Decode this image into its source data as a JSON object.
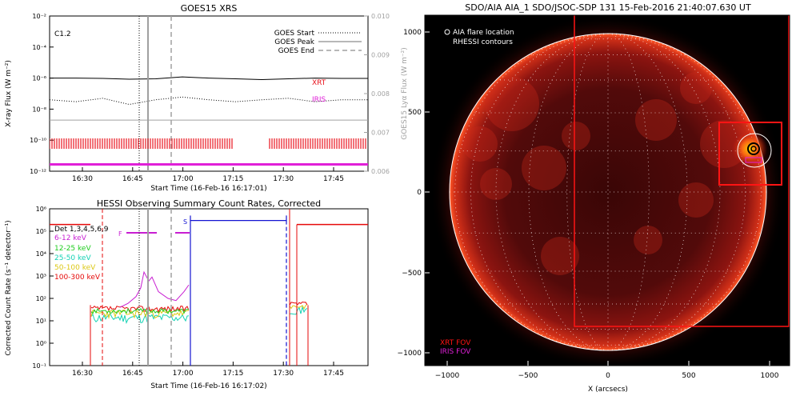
{
  "colors": {
    "xrt": "#e8141e",
    "iris": "#e020d8",
    "hessi_6_12": "#c81ed2",
    "hessi_12_25": "#1ecc1e",
    "hessi_25_50": "#14d2b4",
    "hessi_50_100": "#dcc814",
    "hessi_100_300": "#e60a0a",
    "hessi_s_box": "#1414d2",
    "goes_flux_long": "#000000",
    "goes_flux_short": "#000000",
    "goes_lya": "#a0a0a0"
  },
  "chart_data": [
    {
      "type": "line",
      "title": "GOES15 XRS",
      "xlabel": "Start Time (16-Feb-16 16:17:01)",
      "ylabel": "X-ray Flux (W m⁻²)",
      "y2label": "GOES15 Lyα Flux (W m⁻²)",
      "xticks": [
        "16:30",
        "16:45",
        "17:00",
        "17:15",
        "17:30",
        "17:45"
      ],
      "xlim_minutes": [
        0,
        58
      ],
      "ylim": [
        1e-12,
        0.01
      ],
      "ylog": true,
      "yticks": [
        "10⁻²",
        "10⁻⁴",
        "10⁻⁶",
        "10⁻⁸",
        "10⁻¹⁰",
        "10⁻¹²"
      ],
      "y2lim": [
        0.006,
        0.01
      ],
      "y2ticks": [
        "0.010",
        "0.009",
        "0.008",
        "0.007",
        "0.006"
      ],
      "class_annotation": "C1.2",
      "legend": [
        "GOES Start",
        "GOES Peak",
        "GOES End"
      ],
      "markers": {
        "goes_start_min": 28,
        "goes_peak_min": 29,
        "goes_end_min": 36
      },
      "labels": {
        "xrt": "XRT",
        "iris": "IRIS"
      },
      "series": [
        {
          "values_flux": [
            1e-06,
            1e-06,
            9.5e-07,
            8.5e-07,
            9e-07,
            1.2e-06,
            1e-06,
            9e-07,
            8e-07,
            9e-07,
            1e-06,
            9.5e-07,
            9.5e-07
          ]
        },
        {
          "values_flux": [
            4e-08,
            3e-08,
            5e-08,
            2e-08,
            4e-08,
            6e-08,
            4e-08,
            3e-08,
            4e-08,
            5e-08,
            3e-08,
            4e-08,
            4e-08
          ]
        },
        {
          "values_lya": [
            0.0074,
            0.0074,
            0.0074,
            0.0074,
            0.0074,
            0.0074,
            0.0074,
            0.0074,
            0.0074
          ]
        }
      ],
      "coverage": {
        "xrt_ranges_min": [
          [
            0,
            32
          ],
          [
            46,
            58
          ]
        ],
        "iris_range_min": [
          0,
          58
        ]
      }
    },
    {
      "type": "line",
      "title": "HESSI Observing Summary Count Rates, Corrected",
      "xlabel": "Start Time (16-Feb-16 16:17:02)",
      "ylabel": "Corrected Count Rate (s⁻¹ detector⁻¹)",
      "xticks": [
        "16:30",
        "16:45",
        "17:00",
        "17:15",
        "17:30",
        "17:45"
      ],
      "ylim": [
        0.1,
        1000000.0
      ],
      "ylog": true,
      "yticks": [
        "10⁶",
        "10⁵",
        "10⁴",
        "10³",
        "10²",
        "10¹",
        "10⁰",
        "10⁻¹"
      ],
      "legend_title": "Det 1,3,4,5,6,9",
      "series": [
        {
          "name": "6-12 keV"
        },
        {
          "name": "12-25 keV"
        },
        {
          "name": "25-50 keV"
        },
        {
          "name": "50-100 keV"
        },
        {
          "name": "100-300 keV"
        }
      ],
      "flags": {
        "f_label": "F",
        "s_label": "S"
      },
      "markers": {
        "goes_start_min": 28,
        "goes_peak_min": 29,
        "goes_end_min": 36
      },
      "flare_lines_min": [
        20,
        62
      ],
      "end_lines_min": [
        64,
        71
      ]
    },
    {
      "type": "heatmap",
      "title": "SDO/AIA AIA_1 SDO/JSOC-SDP 131 15-Feb-2016 21:40:07.630 UT",
      "xlabel": "X (arcsecs)",
      "ylabel": "",
      "xticks": [
        "−1000",
        "−500",
        "0",
        "500",
        "1000"
      ],
      "yticks": [
        "1000",
        "500",
        "0",
        "−500",
        "−1000"
      ],
      "xlim": [
        -1140,
        1100
      ],
      "ylim": [
        -1100,
        1100
      ],
      "legend": [
        "AIA flare location",
        "RHESSI contours"
      ],
      "fov_labels": [
        "XRT FOV",
        "IRIS FOV"
      ],
      "flare_location_arcsec": [
        920,
        260
      ],
      "xrt_fov_arcsec": {
        "x": [
          -210,
          1100
        ],
        "y": [
          -850,
          1070
        ]
      },
      "iris_fov_arcsec": {
        "x": [
          700,
          1070
        ],
        "y": [
          55,
          425
        ]
      },
      "solar_radius_arcsec": 985
    }
  ]
}
